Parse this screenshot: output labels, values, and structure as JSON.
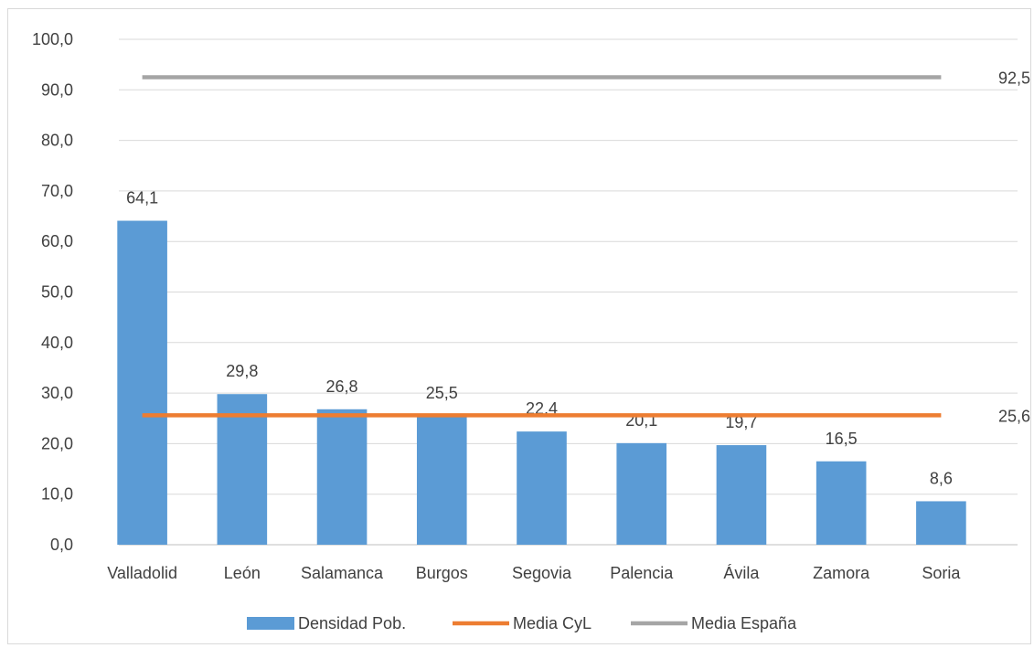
{
  "chart_data": {
    "type": "bar",
    "title": "",
    "xlabel": "",
    "ylabel": "",
    "ylim": [
      0,
      100
    ],
    "ytick_step": 10,
    "ytick_labels": [
      "0,0",
      "10,0",
      "20,0",
      "30,0",
      "40,0",
      "50,0",
      "60,0",
      "70,0",
      "80,0",
      "90,0",
      "100,0"
    ],
    "grid": true,
    "legend_position": "bottom",
    "categories": [
      "Valladolid",
      "León",
      "Salamanca",
      "Burgos",
      "Segovia",
      "Palencia",
      "Ávila",
      "Zamora",
      "Soria"
    ],
    "series": [
      {
        "name": "Densidad Pob.",
        "type": "bar",
        "color": "#5b9bd5",
        "values": [
          64.1,
          29.8,
          26.8,
          25.5,
          22.4,
          20.1,
          19.7,
          16.5,
          8.6
        ],
        "labels": [
          "64,1",
          "29,8",
          "26,8",
          "25,5",
          "22,4",
          "20,1",
          "19,7",
          "16,5",
          "8,6"
        ]
      },
      {
        "name": "Media CyL",
        "type": "line",
        "color": "#ed7d31",
        "value": 25.6,
        "label": "25,6"
      },
      {
        "name": "Media España",
        "type": "line",
        "color": "#a5a5a5",
        "value": 92.5,
        "label": "92,5"
      }
    ]
  }
}
